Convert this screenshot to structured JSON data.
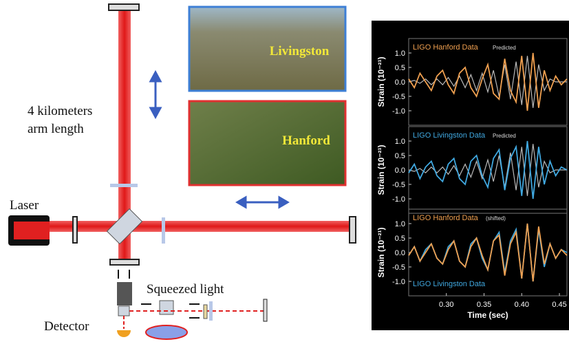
{
  "diagram": {
    "arm_length": [
      "4 kilometers",
      "arm length"
    ],
    "laser": "Laser",
    "squeezed_light": "Squeezed light",
    "detector": "Detector",
    "photos": [
      "Livingston",
      "Hanford"
    ]
  },
  "chart_data": [
    {
      "type": "line",
      "x": [
        0.25,
        0.2575,
        0.265,
        0.2725,
        0.28,
        0.2875,
        0.295,
        0.3025,
        0.31,
        0.3175,
        0.325,
        0.3325,
        0.34,
        0.3475,
        0.355,
        0.3625,
        0.37,
        0.3775,
        0.385,
        0.3925,
        0.4,
        0.4075,
        0.415,
        0.4225,
        0.43,
        0.4375,
        0.445,
        0.4525,
        0.46
      ],
      "series": [
        {
          "name": "LIGO Hanford Data",
          "color": "#f0a050",
          "values": [
            0.1,
            -0.2,
            0.3,
            0.0,
            -0.3,
            0.2,
            0.4,
            -0.1,
            -0.4,
            0.3,
            0.5,
            -0.2,
            -0.5,
            0.1,
            0.6,
            -0.4,
            -0.6,
            0.8,
            -0.3,
            -0.7,
            0.9,
            -1.0,
            1.0,
            -0.9,
            0.4,
            -0.3,
            0.2,
            -0.1,
            0.1
          ]
        },
        {
          "name": "Predicted",
          "color": "#bbbbbb",
          "values": [
            0,
            0.05,
            -0.05,
            0.1,
            -0.1,
            0.1,
            -0.1,
            0.15,
            -0.15,
            0.2,
            -0.2,
            0.25,
            -0.3,
            0.3,
            -0.35,
            0.4,
            -0.5,
            0.6,
            -0.6,
            0.7,
            -0.8,
            0.9,
            -0.9,
            0.6,
            -0.3,
            0.1,
            0,
            0,
            0
          ]
        }
      ],
      "xlim": [
        0.25,
        0.46
      ],
      "ylim": [
        -1.5,
        1.5
      ],
      "yticks": [
        {
          "value": -1,
          "label": "-1.0"
        },
        -0.5,
        {
          "value": 0,
          "label": "0.0"
        },
        0.5,
        {
          "value": 1,
          "label": "1.0"
        }
      ],
      "ylabel": "Strain (10⁻²¹)"
    },
    {
      "type": "line",
      "x": [
        0.25,
        0.2575,
        0.265,
        0.2725,
        0.28,
        0.2875,
        0.295,
        0.3025,
        0.31,
        0.3175,
        0.325,
        0.3325,
        0.34,
        0.3475,
        0.355,
        0.3625,
        0.37,
        0.3775,
        0.385,
        0.3925,
        0.4,
        0.4075,
        0.415,
        0.4225,
        0.43,
        0.4375,
        0.445,
        0.4525,
        0.46
      ],
      "series": [
        {
          "name": "LIGO Livingston Data",
          "color": "#40a8e0",
          "values": [
            -0.1,
            0.2,
            -0.3,
            0.1,
            0.3,
            -0.2,
            -0.4,
            0.2,
            0.4,
            -0.3,
            -0.5,
            0.3,
            0.5,
            -0.2,
            -0.6,
            0.4,
            0.7,
            -0.7,
            0.4,
            0.8,
            -0.9,
            1.0,
            -1.0,
            0.8,
            -0.5,
            0.3,
            -0.2,
            0.1,
            0.0
          ]
        },
        {
          "name": "Predicted",
          "color": "#bbbbbb",
          "values": [
            0,
            -0.05,
            0.05,
            -0.1,
            0.1,
            -0.1,
            0.1,
            -0.15,
            0.15,
            -0.2,
            0.2,
            -0.25,
            0.3,
            -0.3,
            0.35,
            -0.4,
            0.5,
            -0.6,
            0.6,
            -0.7,
            0.8,
            -0.9,
            0.9,
            -0.6,
            0.3,
            -0.1,
            0,
            0,
            0
          ]
        }
      ],
      "xlim": [
        0.25,
        0.46
      ],
      "ylim": [
        -1.5,
        1.5
      ],
      "yticks": [
        {
          "value": -1,
          "label": "-1.0"
        },
        -0.5,
        {
          "value": 0,
          "label": "0.0"
        },
        0.5,
        {
          "value": 1,
          "label": "1.0"
        }
      ],
      "ylabel": "Strain (10⁻²¹)"
    },
    {
      "type": "line",
      "x": [
        0.25,
        0.2575,
        0.265,
        0.2725,
        0.28,
        0.2875,
        0.295,
        0.3025,
        0.31,
        0.3175,
        0.325,
        0.3325,
        0.34,
        0.3475,
        0.355,
        0.3625,
        0.37,
        0.3775,
        0.385,
        0.3925,
        0.4,
        0.4075,
        0.415,
        0.4225,
        0.43,
        0.4375,
        0.445,
        0.4525,
        0.46
      ],
      "series": [
        {
          "name": "LIGO Hanford Data",
          "color": "#f0a050",
          "values": [
            -0.1,
            0.2,
            -0.3,
            0.0,
            0.3,
            -0.2,
            -0.4,
            0.1,
            0.4,
            -0.3,
            -0.5,
            0.2,
            0.5,
            -0.1,
            -0.6,
            0.4,
            0.6,
            -0.8,
            0.3,
            0.7,
            -0.9,
            1.0,
            -1.0,
            0.9,
            -0.4,
            0.3,
            -0.2,
            0.1,
            -0.1
          ]
        },
        {
          "name": "LIGO Livingston Data",
          "color": "#40a8e0",
          "values": [
            -0.1,
            0.2,
            -0.3,
            0.1,
            0.3,
            -0.2,
            -0.4,
            0.2,
            0.4,
            -0.3,
            -0.5,
            0.3,
            0.5,
            -0.2,
            -0.6,
            0.4,
            0.7,
            -0.7,
            0.4,
            0.8,
            -0.9,
            1.0,
            -1.0,
            0.8,
            -0.5,
            0.3,
            -0.2,
            0.1,
            0.0
          ]
        }
      ],
      "annotation": "(shifted)",
      "xlim": [
        0.25,
        0.46
      ],
      "ylim": [
        -1.5,
        1.5
      ],
      "yticks": [
        {
          "value": -1,
          "label": "-1.0"
        },
        -0.5,
        {
          "value": 0,
          "label": "0.0"
        },
        0.5,
        {
          "value": 1,
          "label": "1.0"
        }
      ],
      "xticks": [
        {
          "value": 0.3,
          "label": "0.30"
        },
        0.35,
        {
          "value": 0.4,
          "label": "0.40"
        },
        0.45
      ],
      "ylabel": "Strain (10⁻²¹)",
      "xlabel": "Time (sec)"
    }
  ]
}
